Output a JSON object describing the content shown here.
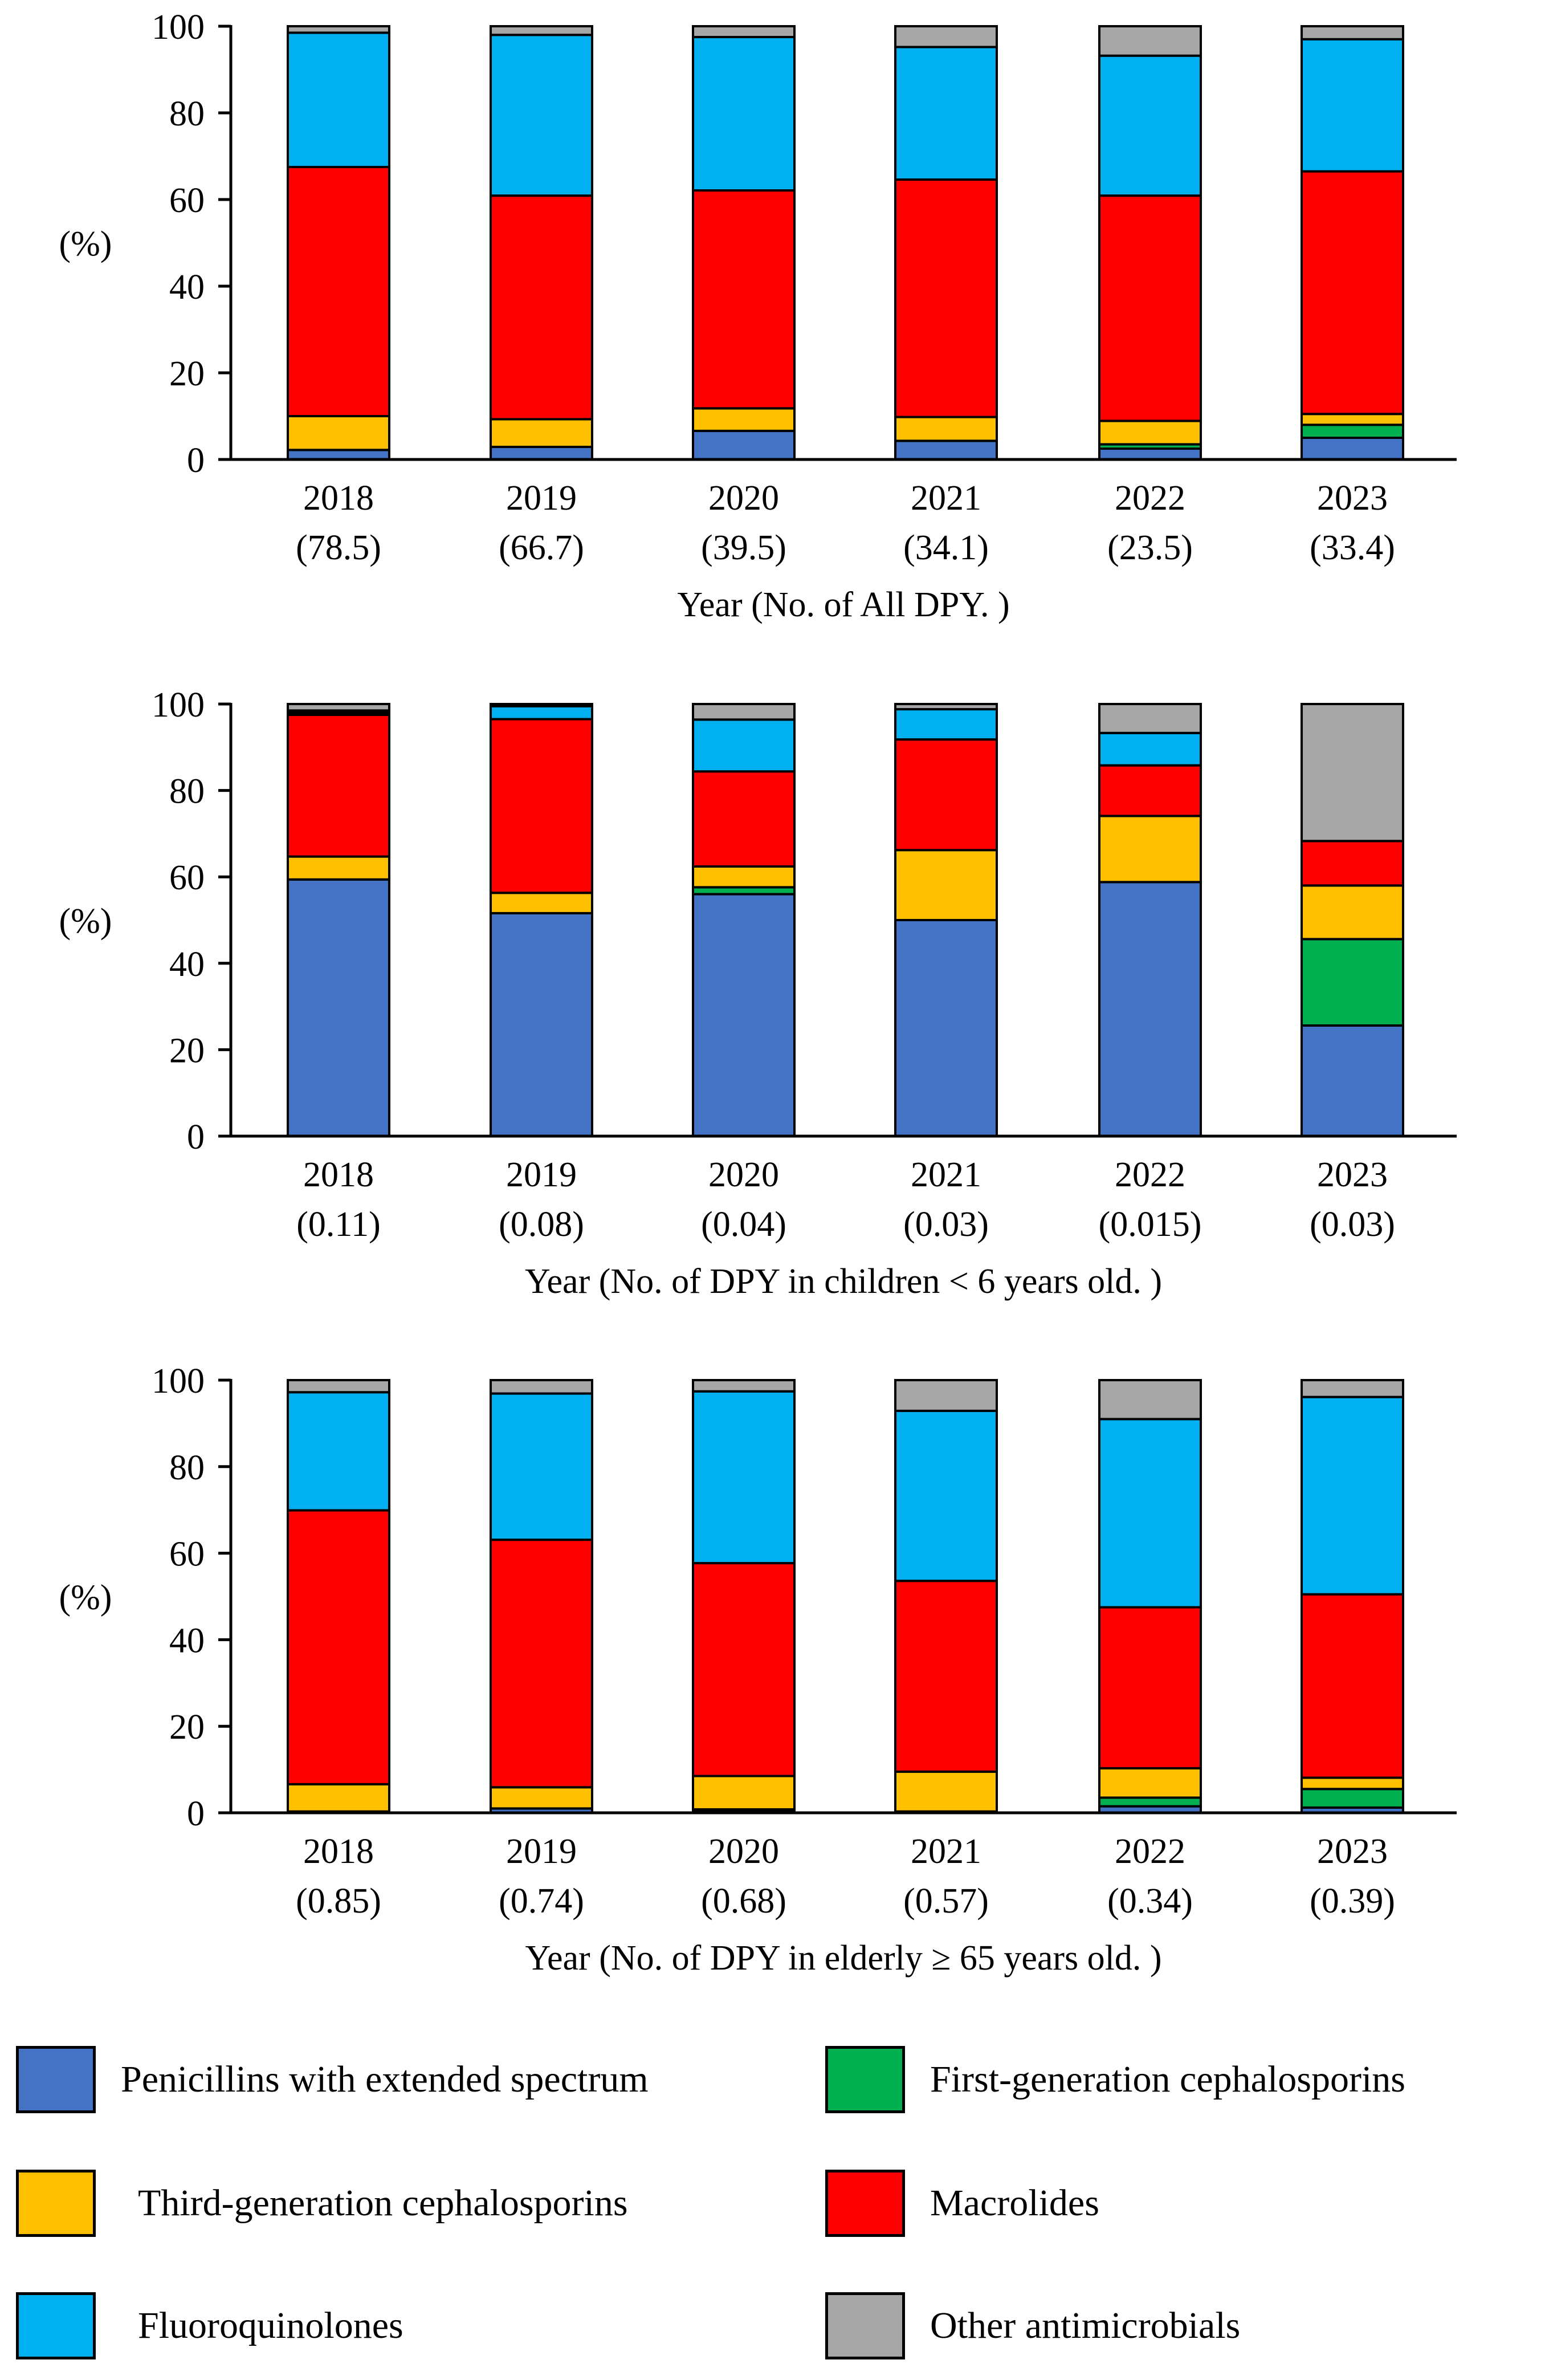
{
  "colors": {
    "Penicillins with extended spectrum": "#4472C4",
    "First-generation cephalosporins": "#00B050",
    "Third-generation cephalosporins": "#FFC000",
    "Macrolides": "#FF0000",
    "Fluoroquinolones": "#00B0F0",
    "Other antimicrobials": "#A6A6A6",
    "Other (black sliver)": "#000000"
  },
  "legend": [
    {
      "label": "Penicillins with extended spectrum",
      "color": "#4472C4"
    },
    {
      "label": "First-generation cephalosporins",
      "color": "#00B050"
    },
    {
      "label": "Third-generation cephalosporins",
      "color": "#FFC000"
    },
    {
      "label": "Macrolides",
      "color": "#FF0000"
    },
    {
      "label": "Fluoroquinolones",
      "color": "#00B0F0"
    },
    {
      "label": "Other antimicrobials",
      "color": "#A6A6A6"
    }
  ],
  "chart_data": [
    {
      "type": "bar",
      "stacked": true,
      "ylabel": "(%)",
      "xlabel": "Year (No. of All DPY. )",
      "ylim": [
        0,
        100
      ],
      "yticks": [
        0,
        20,
        40,
        60,
        80,
        100
      ],
      "categories": [
        "2018",
        "2019",
        "2020",
        "2021",
        "2022",
        "2023"
      ],
      "category_sublabels": [
        "(78.5)",
        "(66.7)",
        "(39.5)",
        "(34.1)",
        "(23.5)",
        "(33.4)"
      ],
      "series": [
        {
          "name": "Penicillins with extended spectrum",
          "color": "#4472C4",
          "values": [
            2.2,
            2.9,
            6.6,
            4.3,
            2.5,
            5.0
          ]
        },
        {
          "name": "First-generation cephalosporins",
          "color": "#00B050",
          "values": [
            0,
            0,
            0,
            0,
            1.0,
            3.0
          ]
        },
        {
          "name": "Third-generation cephalosporins",
          "color": "#FFC000",
          "values": [
            7.8,
            6.4,
            5.2,
            5.5,
            5.4,
            2.5
          ]
        },
        {
          "name": "Macrolides",
          "color": "#FF0000",
          "values": [
            57.5,
            51.6,
            50.3,
            54.8,
            52.0,
            56.0
          ]
        },
        {
          "name": "Fluoroquinolones",
          "color": "#00B0F0",
          "values": [
            31.0,
            37.1,
            35.4,
            30.6,
            32.3,
            30.5
          ]
        },
        {
          "name": "Other antimicrobials",
          "color": "#A6A6A6",
          "values": [
            1.5,
            2.0,
            2.5,
            4.8,
            6.8,
            3.0
          ]
        }
      ]
    },
    {
      "type": "bar",
      "stacked": true,
      "ylabel": "(%)",
      "xlabel": "Year (No. of DPY in children < 6 years old. )",
      "ylim": [
        0,
        100
      ],
      "yticks": [
        0,
        20,
        40,
        60,
        80,
        100
      ],
      "categories": [
        "2018",
        "2019",
        "2020",
        "2021",
        "2022",
        "2023"
      ],
      "category_sublabels": [
        "(0.11)",
        "(0.08)",
        "(0.04)",
        "(0.03)",
        "(0.015)",
        "(0.03)"
      ],
      "series": [
        {
          "name": "Penicillins with extended spectrum",
          "color": "#4472C4",
          "values": [
            59.4,
            51.6,
            56.0,
            50.0,
            58.8,
            25.6
          ]
        },
        {
          "name": "First-generation cephalosporins",
          "color": "#00B050",
          "values": [
            0,
            0,
            1.6,
            0,
            0,
            20.0
          ]
        },
        {
          "name": "Third-generation cephalosporins",
          "color": "#FFC000",
          "values": [
            5.3,
            4.7,
            4.8,
            16.2,
            15.3,
            12.4
          ]
        },
        {
          "name": "Macrolides",
          "color": "#FF0000",
          "values": [
            32.8,
            40.2,
            22.0,
            25.6,
            11.7,
            10.3
          ]
        },
        {
          "name": "Fluoroquinolones",
          "color": "#00B0F0",
          "values": [
            0,
            3.0,
            12.0,
            7.0,
            7.5,
            0
          ]
        },
        {
          "name": "Other (black sliver)",
          "color": "#000000",
          "values": [
            1.0,
            0,
            0,
            0,
            0,
            0
          ]
        },
        {
          "name": "Other antimicrobials",
          "color": "#A6A6A6",
          "values": [
            1.5,
            0.5,
            3.6,
            1.2,
            6.7,
            31.7
          ]
        }
      ]
    },
    {
      "type": "bar",
      "stacked": true,
      "ylabel": "(%)",
      "xlabel": "Year (No. of DPY in elderly ≥ 65 years old. )",
      "ylim": [
        0,
        100
      ],
      "yticks": [
        0,
        20,
        40,
        60,
        80,
        100
      ],
      "categories": [
        "2018",
        "2019",
        "2020",
        "2021",
        "2022",
        "2023"
      ],
      "category_sublabels": [
        "(0.85)",
        "(0.74)",
        "(0.68)",
        "(0.57)",
        "(0.34)",
        "(0.39)"
      ],
      "series": [
        {
          "name": "Penicillins with extended spectrum",
          "color": "#4472C4",
          "values": [
            0.3,
            1.0,
            0.6,
            0.3,
            1.5,
            1.2
          ]
        },
        {
          "name": "First-generation cephalosporins",
          "color": "#00B050",
          "values": [
            0,
            0,
            0.2,
            0,
            2.0,
            4.3
          ]
        },
        {
          "name": "Third-generation cephalosporins",
          "color": "#FFC000",
          "values": [
            6.3,
            4.9,
            7.7,
            9.2,
            6.8,
            2.6
          ]
        },
        {
          "name": "Macrolides",
          "color": "#FF0000",
          "values": [
            63.3,
            57.2,
            49.2,
            44.1,
            37.2,
            42.4
          ]
        },
        {
          "name": "Fluoroquinolones",
          "color": "#00B0F0",
          "values": [
            27.3,
            33.8,
            39.7,
            39.3,
            43.5,
            45.6
          ]
        },
        {
          "name": "Other antimicrobials",
          "color": "#A6A6A6",
          "values": [
            2.8,
            3.1,
            2.6,
            7.1,
            9.0,
            3.9
          ]
        }
      ]
    }
  ]
}
